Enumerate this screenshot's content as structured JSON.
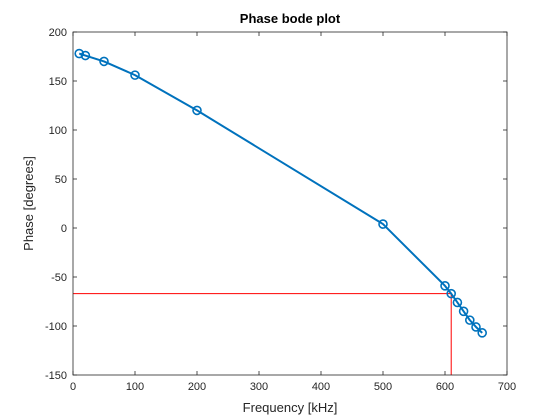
{
  "chart_data": {
    "type": "line",
    "title": "Phase bode plot",
    "xlabel": "Frequency [kHz]",
    "ylabel": "Phase [degrees]",
    "xlim": [
      0,
      700
    ],
    "ylim": [
      -150,
      200
    ],
    "xticks": [
      0,
      100,
      200,
      300,
      400,
      500,
      600,
      700
    ],
    "yticks": [
      -150,
      -100,
      -50,
      0,
      50,
      100,
      150,
      200
    ],
    "grid": false,
    "series": [
      {
        "color": "#0072BD",
        "marker": "circle",
        "x": [
          10,
          20,
          50,
          100,
          200,
          500,
          600,
          610,
          620,
          630,
          640,
          650,
          660
        ],
        "y": [
          178,
          176,
          170,
          156,
          120,
          4,
          -59,
          -67,
          -76,
          -85,
          -94,
          -101,
          -107
        ]
      }
    ],
    "reference_lines": {
      "color": "#FF0000",
      "x": 610,
      "y": -67
    }
  }
}
